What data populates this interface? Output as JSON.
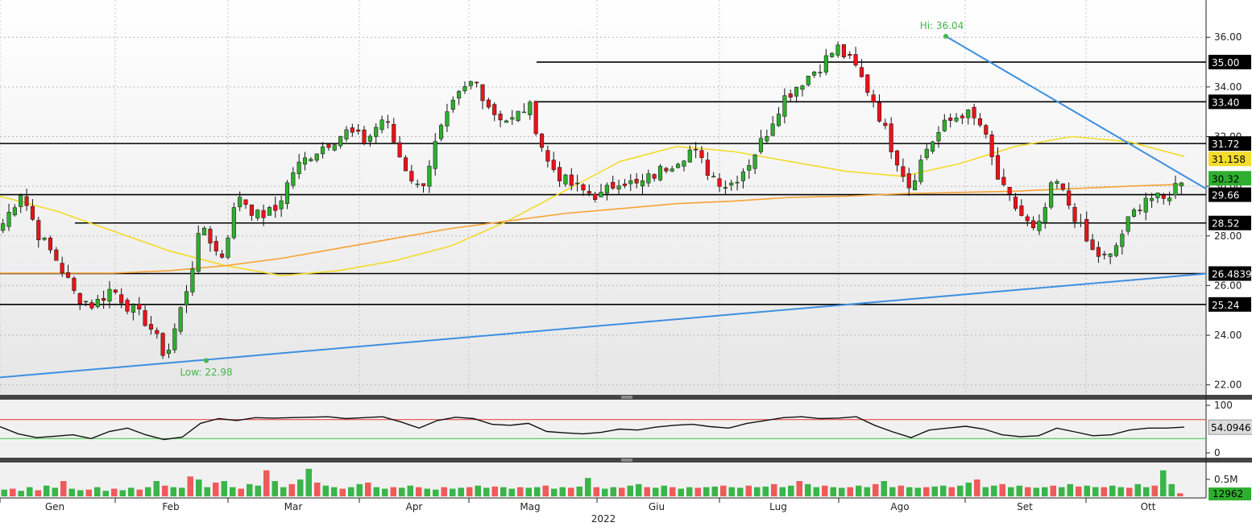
{
  "chart_data": {
    "type": "candlestick",
    "year_label": "2022",
    "months": [
      "Gen",
      "Feb",
      "Mar",
      "Apr",
      "Mag",
      "Giu",
      "Lug",
      "Ago",
      "Set",
      "Ott"
    ],
    "price_axis": {
      "ylim": [
        21.6,
        37.5
      ],
      "ticks": [
        "22.00",
        "24.00",
        "26.00",
        "28.00",
        "30.00",
        "32.00",
        "34.00",
        "36.00"
      ]
    },
    "annotations": {
      "high": "Hi: 36.04",
      "low": "Low: 22.98"
    },
    "horizontal_levels": [
      {
        "value": 35.0,
        "label": "35.00",
        "from": "Mag"
      },
      {
        "value": 33.4,
        "label": "33.40",
        "from": "Mag"
      },
      {
        "value": 31.72,
        "label": "31.72",
        "from": "Gen"
      },
      {
        "value": 29.66,
        "label": "29.66",
        "from": "Gen"
      },
      {
        "value": 28.52,
        "label": "28.52",
        "from": "Feb"
      },
      {
        "value": 26.4839,
        "label": "26.4839",
        "from": "Gen"
      },
      {
        "value": 25.24,
        "label": "25.24",
        "from": "Gen"
      }
    ],
    "value_badges": {
      "ma_short": "31.158",
      "last_price": "30.32",
      "rsi": "54.0946",
      "volume": "12962"
    },
    "trendlines": [
      {
        "name": "support",
        "color": "#3d8fe0",
        "from": 22.3,
        "to": 26.48
      },
      {
        "name": "resistance",
        "color": "#3d8fe0",
        "from": 36.04,
        "to": 29.9
      }
    ],
    "moving_averages": [
      {
        "color": "#f2dc2b",
        "values": [
          29.6,
          29.0,
          28.2,
          27.4,
          26.8,
          26.4,
          26.6,
          27.0,
          27.6,
          28.6,
          29.8,
          31.0,
          31.6,
          31.4,
          31.0,
          30.6,
          30.4,
          30.9,
          31.6,
          32.0,
          31.8,
          31.2
        ]
      },
      {
        "color": "#f7a233",
        "values": [
          26.5,
          26.5,
          26.5,
          26.6,
          26.8,
          27.1,
          27.5,
          27.9,
          28.3,
          28.6,
          28.9,
          29.1,
          29.3,
          29.4,
          29.55,
          29.6,
          29.7,
          29.75,
          29.8,
          29.9,
          30.0,
          30.08
        ]
      }
    ],
    "close_path": [
      28.5,
      29.8,
      28.0,
      27.0,
      25.6,
      25.2,
      25.9,
      25.1,
      24.5,
      23.1,
      25.5,
      28.5,
      27.0,
      29.7,
      28.8,
      29.0,
      30.6,
      31.3,
      31.8,
      32.2,
      31.8,
      32.8,
      31.0,
      29.8,
      32.0,
      33.5,
      34.3,
      33.0,
      32.6,
      33.3,
      31.0,
      30.2,
      29.8,
      29.6,
      30.3,
      30.0,
      30.5,
      31.0,
      31.5,
      30.5,
      30.0,
      30.8,
      32.0,
      33.5,
      34.2,
      34.8,
      35.6,
      34.8,
      33.5,
      31.6,
      30.0,
      31.6,
      32.5,
      33.0,
      32.4,
      30.0,
      29.0,
      28.0,
      30.3,
      29.0,
      27.4,
      27.0,
      28.5,
      29.6,
      29.4,
      30.32
    ],
    "rsi": {
      "ticks": [
        "100",
        "0"
      ],
      "overbought": 70,
      "oversold": 30,
      "values": [
        55,
        40,
        32,
        35,
        38,
        30,
        45,
        52,
        38,
        28,
        33,
        62,
        72,
        68,
        74,
        73,
        74,
        75,
        76,
        72,
        74,
        76,
        65,
        52,
        68,
        75,
        72,
        60,
        58,
        62,
        45,
        42,
        40,
        43,
        50,
        48,
        54,
        58,
        60,
        55,
        52,
        62,
        68,
        74,
        76,
        72,
        73,
        76,
        58,
        44,
        32,
        48,
        52,
        56,
        50,
        38,
        34,
        36,
        52,
        44,
        36,
        38,
        48,
        52,
        52,
        54
      ]
    },
    "volume": {
      "ticks": [
        "0.5M"
      ],
      "bars": [
        0.22,
        0.25,
        0.18,
        0.3,
        0.2,
        0.35,
        0.28,
        0.5,
        0.25,
        0.2,
        0.22,
        0.3,
        0.18,
        0.25,
        0.2,
        0.28,
        0.22,
        0.3,
        0.5,
        0.35,
        0.3,
        0.28,
        0.65,
        0.55,
        0.3,
        0.45,
        0.5,
        0.3,
        0.25,
        0.4,
        0.35,
        0.85,
        0.5,
        0.3,
        0.4,
        0.55,
        0.9,
        0.45,
        0.35,
        0.3,
        0.25,
        0.3,
        0.4,
        0.45,
        0.3,
        0.25,
        0.3,
        0.28,
        0.35,
        0.3,
        0.25,
        0.22,
        0.3,
        0.25,
        0.28,
        0.3,
        0.35,
        0.28,
        0.32,
        0.3,
        0.25,
        0.3,
        0.28,
        0.3,
        0.35,
        0.25,
        0.3,
        0.28,
        0.32,
        0.6,
        0.3,
        0.25,
        0.3,
        0.28,
        0.35,
        0.4,
        0.3,
        0.28,
        0.35,
        0.3,
        0.25,
        0.3,
        0.28,
        0.3,
        0.32,
        0.35,
        0.3,
        0.28,
        0.35,
        0.3,
        0.32,
        0.4,
        0.3,
        0.35,
        0.5,
        0.4,
        0.3,
        0.35,
        0.3,
        0.28,
        0.3,
        0.35,
        0.3,
        0.4,
        0.5,
        0.3,
        0.35,
        0.3,
        0.28,
        0.3,
        0.32,
        0.35,
        0.3,
        0.35,
        0.45,
        0.55,
        0.3,
        0.35,
        0.4,
        0.3,
        0.35,
        0.3,
        0.28,
        0.3,
        0.35,
        0.3,
        0.4,
        0.32,
        0.35,
        0.3,
        0.3,
        0.35,
        0.3,
        0.28,
        0.4,
        0.3,
        0.35,
        0.85,
        0.4,
        0.1
      ]
    }
  }
}
